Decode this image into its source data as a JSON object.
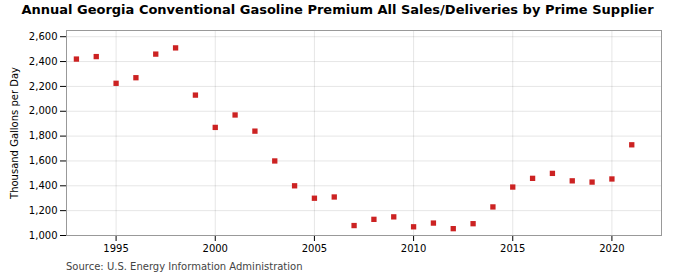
{
  "chart_data": {
    "type": "scatter",
    "title": "Annual Georgia Conventional Gasoline Premium All Sales/Deliveries by Prime Supplier",
    "ylabel": "Thousand Gallons per Day",
    "source": "Source: U.S. Energy Information Administration",
    "x": [
      1993,
      1994,
      1995,
      1996,
      1997,
      1998,
      1999,
      2000,
      2001,
      2002,
      2003,
      2004,
      2005,
      2006,
      2007,
      2008,
      2009,
      2010,
      2011,
      2012,
      2013,
      2014,
      2015,
      2016,
      2017,
      2018,
      2019,
      2020,
      2021
    ],
    "values": [
      2420,
      2440,
      2225,
      2270,
      2460,
      2510,
      2130,
      1870,
      1970,
      1840,
      1600,
      1400,
      1300,
      1310,
      1080,
      1130,
      1150,
      1070,
      1100,
      1055,
      1095,
      1230,
      1390,
      1460,
      1500,
      1440,
      1430,
      1455,
      1730
    ],
    "color": "#cc2222",
    "marker": "square",
    "xlim": [
      1992.5,
      2022.5
    ],
    "xticks": [
      1995,
      2000,
      2005,
      2010,
      2015,
      2020
    ],
    "ylim": [
      1000,
      2650
    ],
    "yticks": [
      {
        "value": 1000,
        "label": "1,000"
      },
      {
        "value": 1200,
        "label": "1,200"
      },
      {
        "value": 1400,
        "label": "1,400"
      },
      {
        "value": 1600,
        "label": "1,600"
      },
      {
        "value": 1800,
        "label": "1,800"
      },
      {
        "value": 2000,
        "label": "2,000"
      },
      {
        "value": 2200,
        "label": "2,200"
      },
      {
        "value": 2400,
        "label": "2,400"
      },
      {
        "value": 2600,
        "label": "2,600"
      }
    ],
    "grid": true
  }
}
